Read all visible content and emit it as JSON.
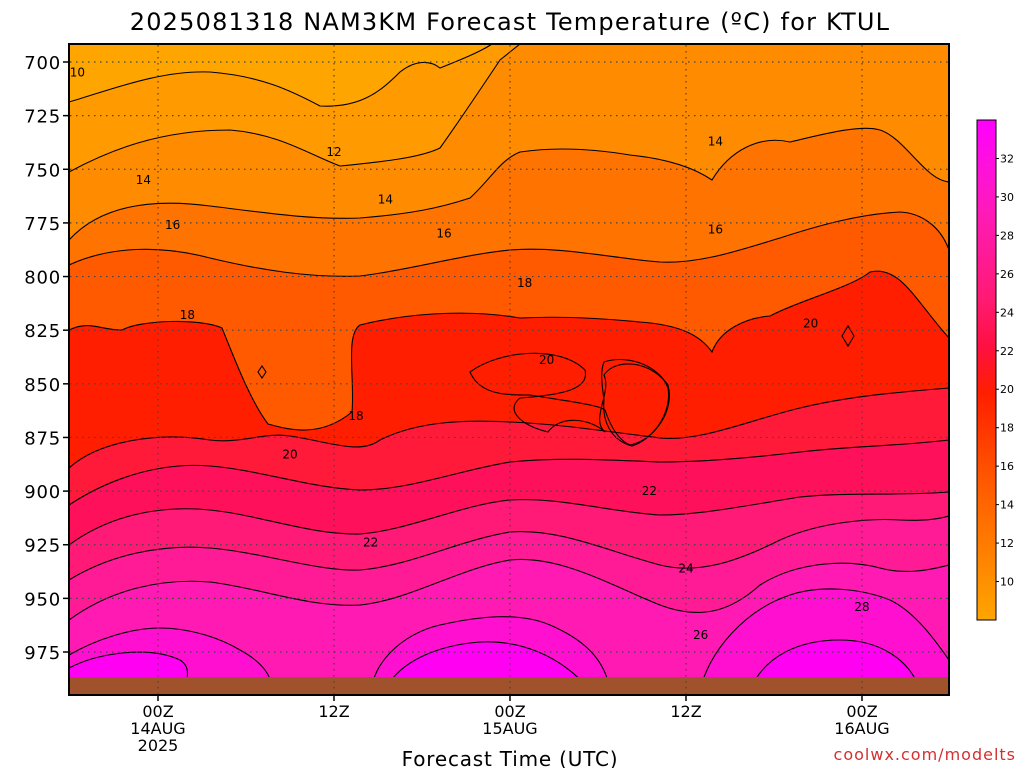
{
  "chart_data": {
    "type": "heatmap",
    "title": "2025081318 NAM3KM Forecast Temperature (ºC) for KTUL",
    "xlabel": "Forecast Time (UTC)",
    "ylabel": "",
    "ylim": [
      990,
      690
    ],
    "y_axis": {
      "ticks": [
        700,
        725,
        750,
        775,
        800,
        825,
        850,
        875,
        900,
        925,
        950,
        975
      ],
      "tick_labels": [
        "700",
        "725",
        "750",
        "775",
        "800",
        "825",
        "850",
        "875",
        "900",
        "925",
        "950",
        "975"
      ]
    },
    "x_axis": {
      "tick_hours": [
        0,
        12,
        24,
        36,
        48
      ],
      "tick_labels": [
        [
          "00Z",
          "14AUG",
          "2025"
        ],
        [
          "12Z"
        ],
        [
          "00Z",
          "15AUG"
        ],
        [
          "12Z"
        ],
        [
          "00Z",
          "16AUG"
        ]
      ]
    },
    "grid": true,
    "colorbar": {
      "ticks": [
        10,
        12,
        14,
        16,
        18,
        20,
        22,
        24,
        26,
        28,
        30,
        32
      ],
      "range": [
        8,
        34
      ],
      "colors": [
        "#ffa500",
        "#ff8c00",
        "#ff7300",
        "#ff5a00",
        "#ff3c00",
        "#ff1e00",
        "#ff1040",
        "#ff1a70",
        "#ff1a96",
        "#ff1ab9",
        "#ff10dc",
        "#ff00ff"
      ]
    },
    "contour_labels": [
      {
        "text": "10",
        "hour": -5.5,
        "level": 705
      },
      {
        "text": "12",
        "hour": 12,
        "level": 742
      },
      {
        "text": "14",
        "hour": -1.0,
        "level": 755
      },
      {
        "text": "14",
        "hour": 15.5,
        "level": 764
      },
      {
        "text": "14",
        "hour": 38,
        "level": 737
      },
      {
        "text": "16",
        "hour": 1.0,
        "level": 776
      },
      {
        "text": "16",
        "hour": 19.5,
        "level": 780
      },
      {
        "text": "16",
        "hour": 38,
        "level": 778
      },
      {
        "text": "18",
        "hour": 2.0,
        "level": 818
      },
      {
        "text": "18",
        "hour": 13.5,
        "level": 865
      },
      {
        "text": "18",
        "hour": 25,
        "level": 803
      },
      {
        "text": "20",
        "hour": 9.0,
        "level": 883
      },
      {
        "text": "20",
        "hour": 26.5,
        "level": 839
      },
      {
        "text": "20",
        "hour": 44.5,
        "level": 822
      },
      {
        "text": "22",
        "hour": 14.5,
        "level": 924
      },
      {
        "text": "22",
        "hour": 33.5,
        "level": 900
      },
      {
        "text": "24",
        "hour": 36,
        "level": 936
      },
      {
        "text": "26",
        "hour": 37,
        "level": 967
      },
      {
        "text": "28",
        "hour": 48,
        "level": 954
      }
    ]
  },
  "watermark": "coolwx.com/modelts"
}
